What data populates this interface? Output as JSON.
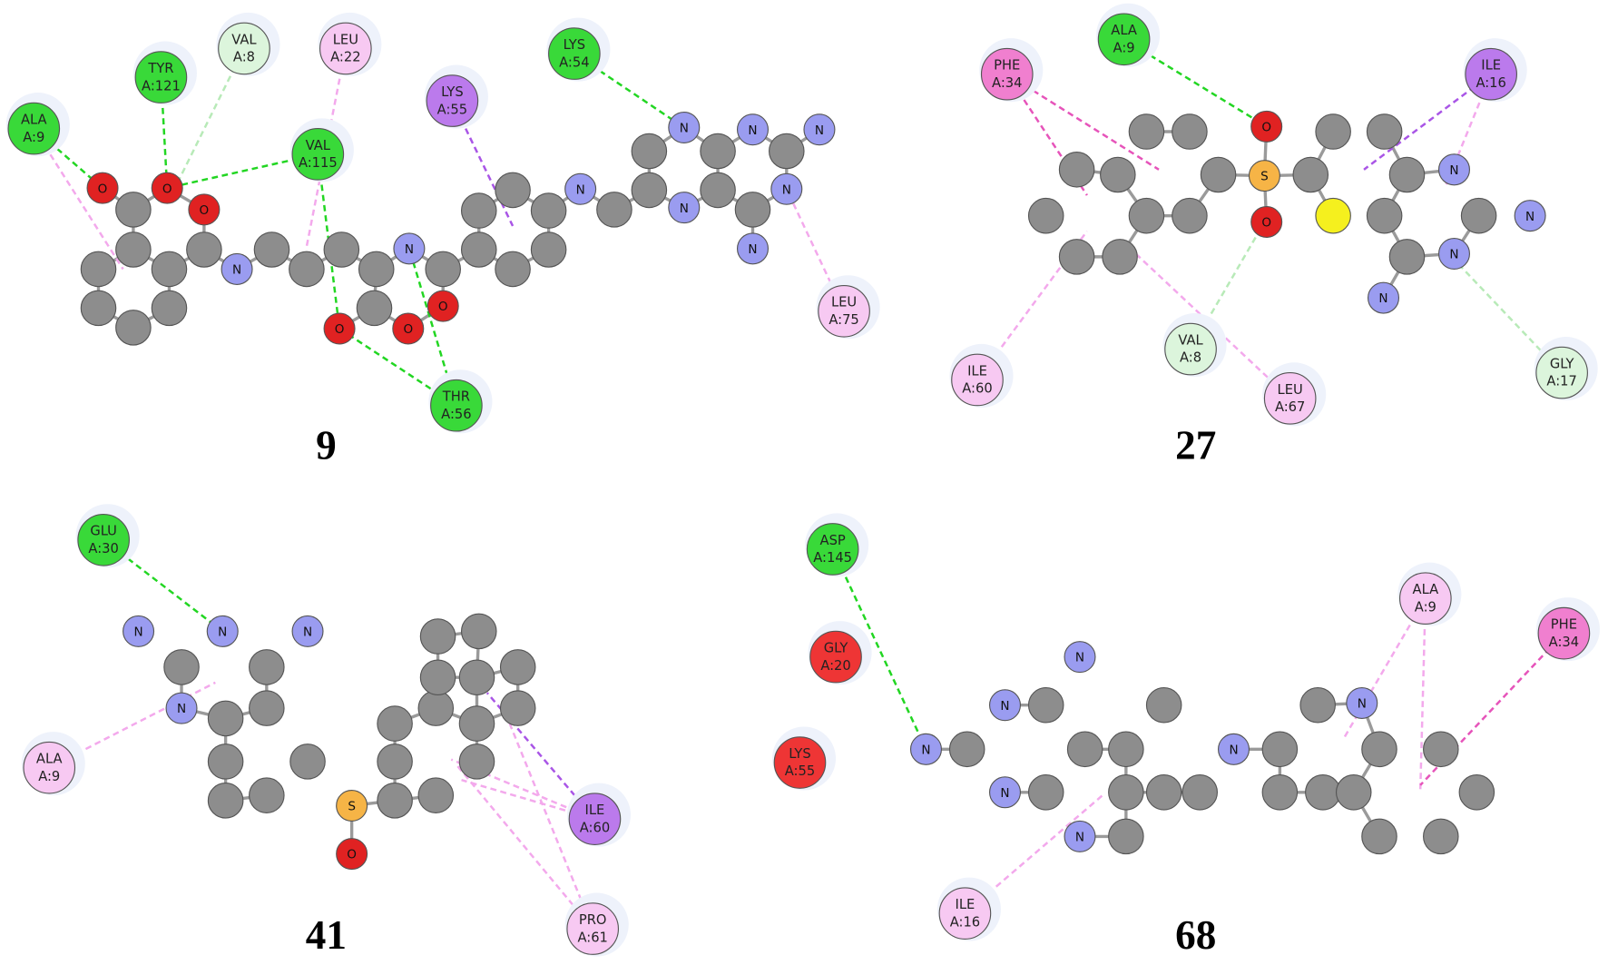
{
  "panels": [
    {
      "label": "9",
      "residues": [
        {
          "name": "ALA",
          "position": "A:9",
          "color": "#39d939"
        },
        {
          "name": "TYR",
          "position": "A:121",
          "color": "#39d939"
        },
        {
          "name": "VAL",
          "position": "A:8",
          "color": "#dcf5dc"
        },
        {
          "name": "LEU",
          "position": "A:22",
          "color": "#f7c9f2"
        },
        {
          "name": "VAL",
          "position": "A:115",
          "color": "#39d939"
        },
        {
          "name": "LYS",
          "position": "A:55",
          "color": "#bb7aec"
        },
        {
          "name": "LYS",
          "position": "A:54",
          "color": "#39d939"
        },
        {
          "name": "THR",
          "position": "A:56",
          "color": "#39d939"
        },
        {
          "name": "LEU",
          "position": "A:75",
          "color": "#f7c9f2"
        }
      ],
      "atoms": [
        "O",
        "O",
        "O",
        "N",
        "N",
        "O",
        "O",
        "O",
        "N",
        "N",
        "N",
        "N",
        "N",
        "N",
        "N"
      ]
    },
    {
      "label": "27",
      "residues": [
        {
          "name": "PHE",
          "position": "A:34",
          "color": "#f07fcf"
        },
        {
          "name": "ALA",
          "position": "A:9",
          "color": "#39d939"
        },
        {
          "name": "ILE",
          "position": "A:16",
          "color": "#bb7aec"
        },
        {
          "name": "VAL",
          "position": "A:8",
          "color": "#dcf5dc"
        },
        {
          "name": "ILE",
          "position": "A:60",
          "color": "#f7c9f2"
        },
        {
          "name": "LEU",
          "position": "A:67",
          "color": "#f7c9f2"
        },
        {
          "name": "GLY",
          "position": "A:17",
          "color": "#dcf5dc"
        }
      ],
      "atoms": [
        "O",
        "S",
        "O",
        "N",
        "N",
        "N",
        "N"
      ]
    },
    {
      "label": "41",
      "residues": [
        {
          "name": "GLU",
          "position": "A:30",
          "color": "#39d939"
        },
        {
          "name": "ALA",
          "position": "A:9",
          "color": "#f7c9f2"
        },
        {
          "name": "ILE",
          "position": "A:60",
          "color": "#bb7aec"
        },
        {
          "name": "PRO",
          "position": "A:61",
          "color": "#f7c9f2"
        }
      ],
      "atoms": [
        "N",
        "N",
        "N",
        "N",
        "S",
        "O"
      ]
    },
    {
      "label": "68",
      "residues": [
        {
          "name": "ASP",
          "position": "A:145",
          "color": "#39d939"
        },
        {
          "name": "GLY",
          "position": "A:20",
          "color": "#ee3535"
        },
        {
          "name": "LYS",
          "position": "A:55",
          "color": "#ee3535"
        },
        {
          "name": "ALA",
          "position": "A:9",
          "color": "#f7c9f2"
        },
        {
          "name": "PHE",
          "position": "A:34",
          "color": "#f07fcf"
        },
        {
          "name": "ILE",
          "position": "A:16",
          "color": "#f7c9f2"
        }
      ],
      "atoms": [
        "N",
        "N",
        "N",
        "N",
        "N",
        "N",
        "N"
      ]
    }
  ]
}
